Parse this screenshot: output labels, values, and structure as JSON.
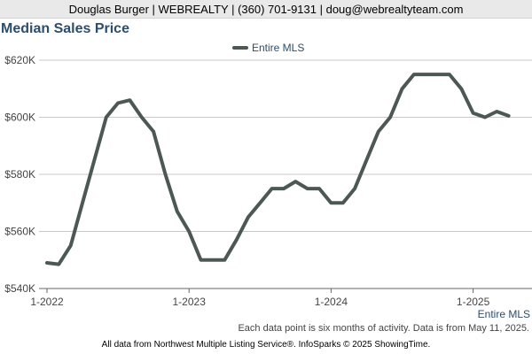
{
  "header": {
    "contact": "Douglas Burger | WEBREALTY | (360) 701-9131 | doug@webrealtyteam.com"
  },
  "chart_data": {
    "type": "line",
    "title": "Median Sales Price",
    "legend": {
      "position": "top",
      "entries": [
        "Entire MLS"
      ]
    },
    "grid": true,
    "ylim": [
      540000,
      620000
    ],
    "y_ticks": [
      {
        "value": 540000,
        "label": "$540K"
      },
      {
        "value": 560000,
        "label": "$560K"
      },
      {
        "value": 580000,
        "label": "$580K"
      },
      {
        "value": 600000,
        "label": "$600K"
      },
      {
        "value": 620000,
        "label": "$620K"
      }
    ],
    "x_ticks": [
      {
        "month": 0,
        "label": "1-2022"
      },
      {
        "month": 12,
        "label": "1-2023"
      },
      {
        "month": 24,
        "label": "1-2024"
      },
      {
        "month": 36,
        "label": "1-2025"
      }
    ],
    "series_end_label": "Entire MLS",
    "series": [
      {
        "name": "Entire MLS",
        "color": "#4d5855",
        "points": [
          [
            "1-2022",
            549000
          ],
          [
            "2-2022",
            548500
          ],
          [
            "3-2022",
            555000
          ],
          [
            "4-2022",
            570000
          ],
          [
            "5-2022",
            585000
          ],
          [
            "6-2022",
            600000
          ],
          [
            "7-2022",
            605000
          ],
          [
            "8-2022",
            606000
          ],
          [
            "9-2022",
            600000
          ],
          [
            "10-2022",
            595000
          ],
          [
            "11-2022",
            580000
          ],
          [
            "12-2022",
            567000
          ],
          [
            "1-2023",
            560000
          ],
          [
            "2-2023",
            550000
          ],
          [
            "3-2023",
            550000
          ],
          [
            "4-2023",
            550000
          ],
          [
            "5-2023",
            557000
          ],
          [
            "6-2023",
            565000
          ],
          [
            "7-2023",
            570000
          ],
          [
            "8-2023",
            575000
          ],
          [
            "9-2023",
            575000
          ],
          [
            "10-2023",
            577500
          ],
          [
            "11-2023",
            575000
          ],
          [
            "12-2023",
            575000
          ],
          [
            "1-2024",
            570000
          ],
          [
            "2-2024",
            570000
          ],
          [
            "3-2024",
            575000
          ],
          [
            "4-2024",
            585000
          ],
          [
            "5-2024",
            595000
          ],
          [
            "6-2024",
            600000
          ],
          [
            "7-2024",
            610000
          ],
          [
            "8-2024",
            615000
          ],
          [
            "9-2024",
            615000
          ],
          [
            "10-2024",
            615000
          ],
          [
            "11-2024",
            615000
          ],
          [
            "12-2024",
            610000
          ],
          [
            "1-2025",
            601500
          ],
          [
            "2-2025",
            600000
          ],
          [
            "3-2025",
            602000
          ],
          [
            "4-2025",
            600500
          ]
        ]
      }
    ]
  },
  "footnote": "Each data point is six months of activity. Data is from May 11, 2025.",
  "footer": "All data from Northwest Multiple Listing Service®. InfoSparks © 2025 ShowingTime."
}
